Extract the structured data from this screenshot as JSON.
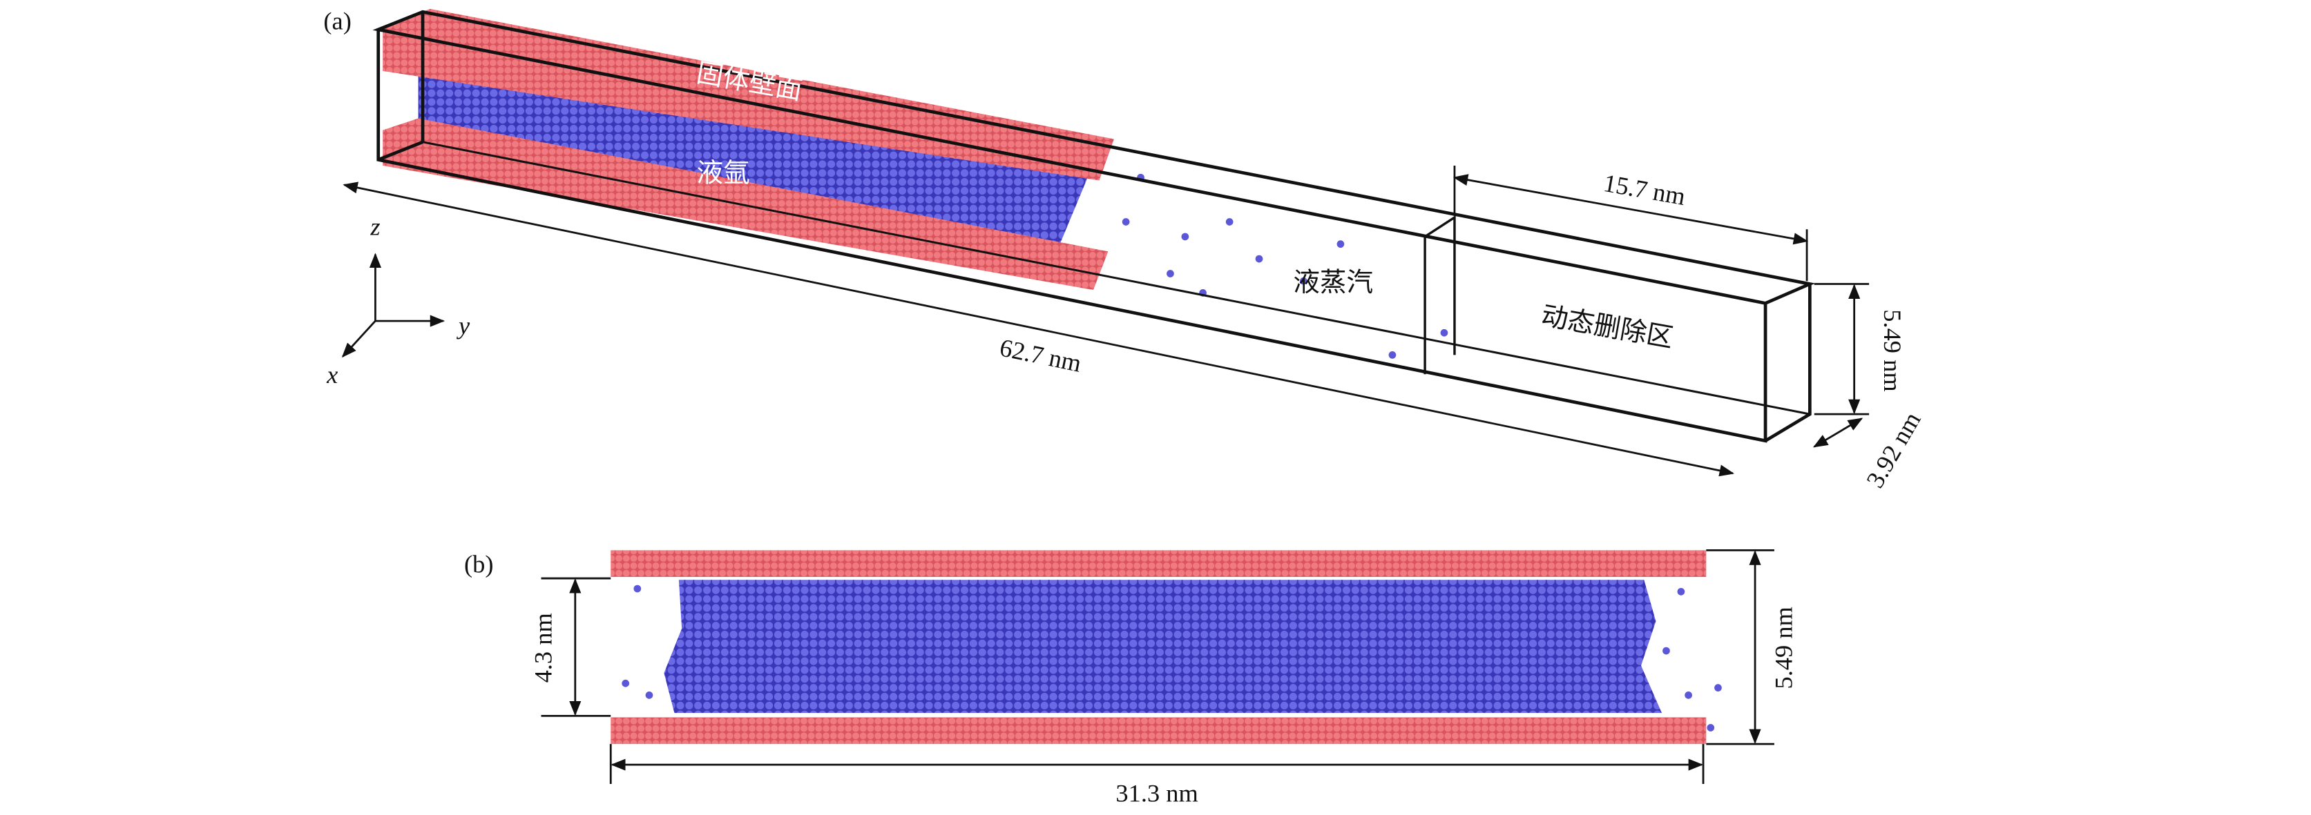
{
  "panel_a": {
    "label": "(a)",
    "wall": "固体壁面",
    "liquid": "液氩",
    "vapor": "液蒸汽",
    "deletion_zone": "动态删除区",
    "length": "62.7 nm",
    "zone_length": "15.7 nm",
    "height": "5.49 nm",
    "width": "3.92 nm",
    "axes": {
      "z": "z",
      "y": "y",
      "x": "x"
    }
  },
  "panel_b": {
    "label": "(b)",
    "gap": "4.3 nm",
    "height": "5.49 nm",
    "length": "31.3 nm"
  }
}
